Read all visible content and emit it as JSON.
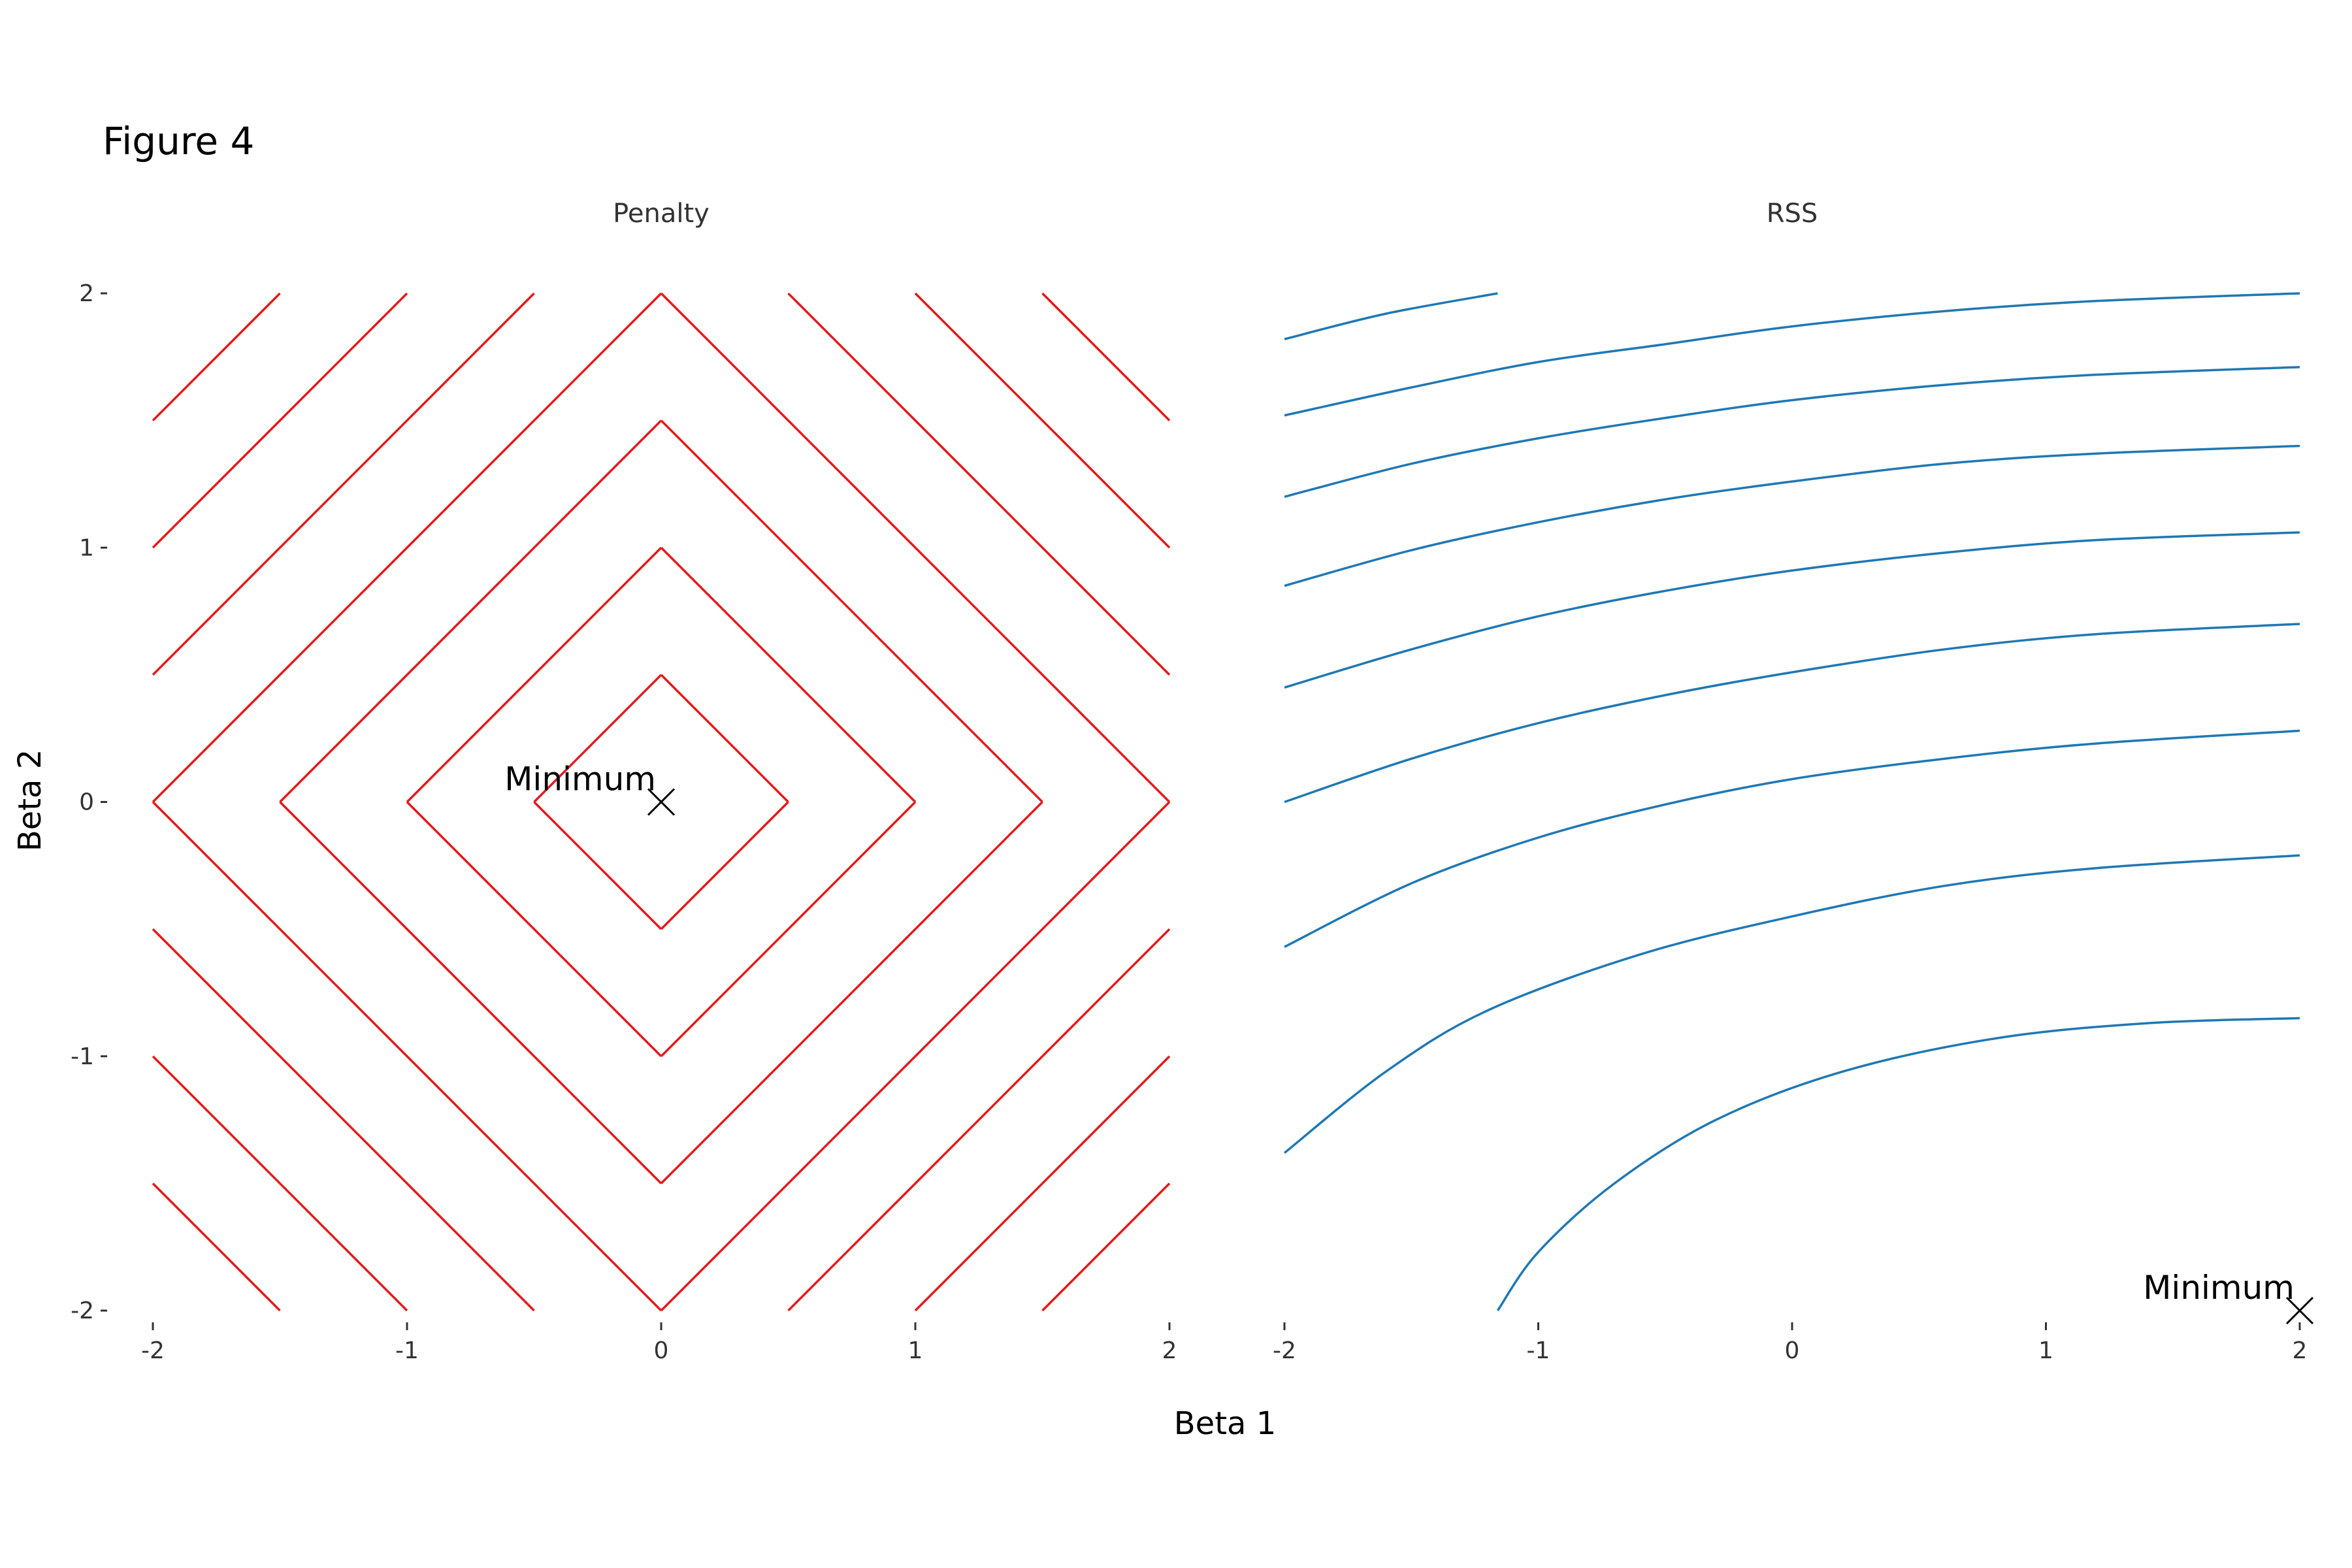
{
  "figure": {
    "title": "Figure 4"
  },
  "chart_data": {
    "type": "line",
    "xlabel": "Beta 1",
    "ylabel": "Beta 2",
    "xlim": [
      -2,
      2
    ],
    "ylim": [
      -2,
      2
    ],
    "grid": false,
    "panels": [
      {
        "title": "Penalty",
        "kind": "contour",
        "function": "|beta1| + |beta2|",
        "color": "#e41a1c",
        "levels": [
          0.5,
          1,
          1.5,
          2,
          2.5,
          3,
          3.5
        ],
        "xticks": [
          -2,
          -1,
          0,
          1,
          2
        ],
        "xtick_labels": [
          "-2",
          "-1",
          "0",
          "1",
          "2"
        ],
        "yticks": [
          -2,
          -1,
          0,
          1,
          2
        ],
        "ytick_labels": [
          "-2",
          "-1",
          "0",
          "1",
          "2"
        ],
        "annotation": {
          "label": "Minimum",
          "x": 0,
          "y": 0
        }
      },
      {
        "title": "RSS",
        "kind": "contour",
        "color": "#1f78b4",
        "curves": [
          {
            "x": [
              -1.16,
              -1.0,
              -0.7,
              -0.3,
              0.2,
              0.8,
              1.4,
              2.0
            ],
            "y": [
              -2.0,
              -1.77,
              -1.5,
              -1.25,
              -1.06,
              -0.93,
              -0.87,
              -0.85
            ]
          },
          {
            "x": [
              -2.0,
              -1.6,
              -1.2,
              -0.6,
              0.0,
              0.6,
              1.2,
              2.0
            ],
            "y": [
              -1.38,
              -1.06,
              -0.82,
              -0.6,
              -0.45,
              -0.33,
              -0.26,
              -0.21
            ]
          },
          {
            "x": [
              -2.0,
              -1.5,
              -1.0,
              -0.5,
              0.0,
              0.6,
              1.2,
              2.0
            ],
            "y": [
              -0.57,
              -0.32,
              -0.14,
              -0.01,
              0.09,
              0.17,
              0.23,
              0.28
            ]
          },
          {
            "x": [
              -2.0,
              -1.5,
              -1.0,
              -0.5,
              0.0,
              0.6,
              1.2,
              2.0
            ],
            "y": [
              0.0,
              0.17,
              0.31,
              0.42,
              0.51,
              0.6,
              0.66,
              0.7
            ]
          },
          {
            "x": [
              -2.0,
              -1.5,
              -1.0,
              -0.5,
              0.0,
              0.6,
              1.2,
              2.0
            ],
            "y": [
              0.45,
              0.6,
              0.73,
              0.83,
              0.91,
              0.98,
              1.03,
              1.06
            ]
          },
          {
            "x": [
              -2.0,
              -1.5,
              -1.0,
              -0.5,
              0.0,
              0.6,
              1.2,
              2.0
            ],
            "y": [
              0.85,
              0.99,
              1.1,
              1.19,
              1.26,
              1.33,
              1.37,
              1.4
            ]
          },
          {
            "x": [
              -2.0,
              -1.5,
              -1.0,
              -0.5,
              0.0,
              0.6,
              1.2,
              2.0
            ],
            "y": [
              1.2,
              1.33,
              1.43,
              1.51,
              1.58,
              1.64,
              1.68,
              1.71
            ]
          },
          {
            "x": [
              -2.0,
              -1.5,
              -1.0,
              -0.5,
              0.0,
              0.6,
              1.2,
              2.0
            ],
            "y": [
              1.52,
              1.63,
              1.73,
              1.8,
              1.87,
              1.93,
              1.97,
              2.0
            ]
          },
          {
            "x": [
              -2.0,
              -1.6,
              -1.16
            ],
            "y": [
              1.82,
              1.92,
              2.0
            ]
          }
        ],
        "xticks": [
          -2,
          -1,
          0,
          1,
          2
        ],
        "xtick_labels": [
          "-2",
          "-1",
          "0",
          "1",
          "2"
        ],
        "annotation": {
          "label": "Minimum",
          "x": 2,
          "y": -2
        }
      }
    ]
  }
}
